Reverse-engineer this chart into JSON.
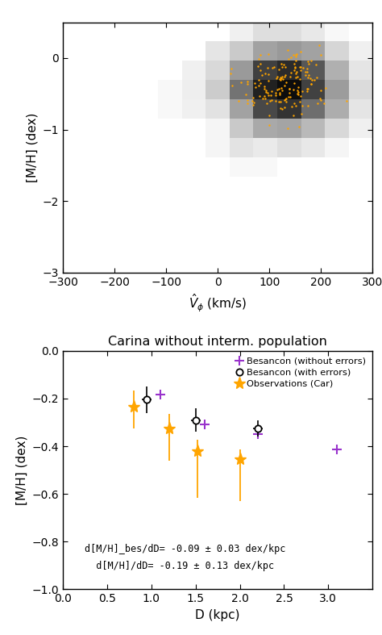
{
  "top_panel": {
    "xlim": [
      -300,
      300
    ],
    "ylim": [
      -3.0,
      0.5
    ],
    "xlabel": "$\\hat{V}_{\\phi}$ (km/s)",
    "ylabel": "[M/H] (dex)",
    "xticks": [
      -300,
      -200,
      -100,
      0,
      100,
      200,
      300
    ],
    "yticks": [
      -3,
      -2,
      -1,
      0
    ],
    "scatter_color": "#FFA500",
    "scatter_size": 3
  },
  "bottom_panel": {
    "title": "Carina without interm. population",
    "xlim": [
      0.0,
      3.5
    ],
    "ylim": [
      -1.0,
      0.0
    ],
    "xlabel": "D (kpc)",
    "ylabel": "[M/H] (dex)",
    "xticks": [
      0.0,
      0.5,
      1.0,
      1.5,
      2.0,
      2.5,
      3.0
    ],
    "yticks": [
      0.0,
      -0.2,
      -0.4,
      -0.6,
      -0.8,
      -1.0
    ],
    "annotation1": "d[M/H]_bes/dD= -0.09 ± 0.03 dex/kpc",
    "annotation2": "  d[M/H]/dD= -0.19 ± 0.13 dex/kpc",
    "besancon_no_err": {
      "x": [
        1.1,
        1.6,
        2.2,
        3.1
      ],
      "y": [
        -0.185,
        -0.31,
        -0.35,
        -0.415
      ],
      "color": "#9933CC",
      "marker": "+",
      "markersize": 9,
      "markeredgewidth": 1.5,
      "label": "Besancon (without errors)"
    },
    "besancon_with_err": {
      "x": [
        0.95,
        1.5,
        2.2
      ],
      "y": [
        -0.205,
        -0.29,
        -0.325
      ],
      "yerr": [
        0.055,
        0.048,
        0.033
      ],
      "xerr": [
        0.055,
        0.055,
        0.055
      ],
      "color": "black",
      "marker": "o",
      "markersize": 6,
      "markeredgewidth": 1.3,
      "label": "Besancon (with errors)"
    },
    "observations": {
      "x": [
        0.8,
        1.2,
        1.52,
        2.0
      ],
      "y": [
        -0.235,
        -0.325,
        -0.42,
        -0.455
      ],
      "yerr_lo": [
        0.09,
        0.135,
        0.195,
        0.175
      ],
      "yerr_hi": [
        0.07,
        0.06,
        0.048,
        0.04
      ],
      "color": "#FFA500",
      "marker": "*",
      "markersize": 11,
      "label": "Observations (Car)"
    }
  }
}
